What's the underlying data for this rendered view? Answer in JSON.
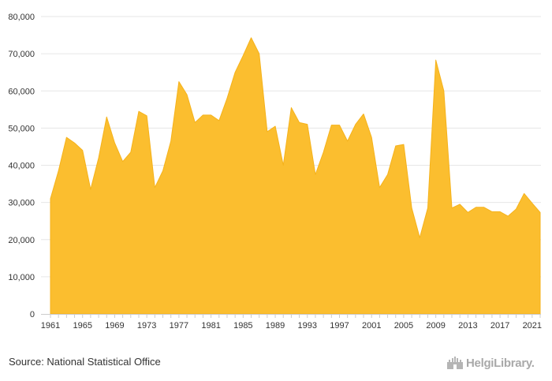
{
  "source": "Source: National Statistical Office",
  "logo": {
    "text": "HelgiLibrary.",
    "icon": "castle-icon"
  },
  "colors": {
    "fill": "#FBBE2F",
    "stroke": "#F5B21B",
    "grid": "#E6E6E6",
    "axis": "#CCCCCC"
  },
  "chart_data": {
    "type": "area",
    "title": "",
    "xlabel": "",
    "ylabel": "",
    "ylim": [
      0,
      80000
    ],
    "yticks": [
      0,
      10000,
      20000,
      30000,
      40000,
      50000,
      60000,
      70000,
      80000
    ],
    "ytick_labels": [
      "0",
      "10,000",
      "20,000",
      "30,000",
      "40,000",
      "50,000",
      "60,000",
      "70,000",
      "80,000"
    ],
    "xtick_labels": [
      "1961",
      "1965",
      "1969",
      "1973",
      "1977",
      "1981",
      "1985",
      "1989",
      "1993",
      "1997",
      "2001",
      "2005",
      "2009",
      "2013",
      "2017",
      "2021"
    ],
    "grid": true,
    "legend": "none",
    "x": [
      1961,
      1962,
      1963,
      1964,
      1965,
      1966,
      1967,
      1968,
      1969,
      1970,
      1971,
      1972,
      1973,
      1974,
      1975,
      1976,
      1977,
      1978,
      1979,
      1980,
      1981,
      1982,
      1983,
      1984,
      1985,
      1986,
      1987,
      1988,
      1989,
      1990,
      1991,
      1992,
      1993,
      1994,
      1995,
      1996,
      1997,
      1998,
      1999,
      2000,
      2001,
      2002,
      2003,
      2004,
      2005,
      2006,
      2007,
      2008,
      2009,
      2010,
      2011,
      2012,
      2013,
      2014,
      2015,
      2016,
      2017,
      2018,
      2019,
      2020,
      2021,
      2022
    ],
    "values": [
      31000,
      38500,
      47500,
      46000,
      44000,
      33500,
      42000,
      53000,
      46000,
      41000,
      43500,
      54500,
      53300,
      34000,
      38500,
      46500,
      62500,
      59000,
      51500,
      53500,
      53500,
      52000,
      58000,
      65000,
      69500,
      74300,
      70000,
      49000,
      50500,
      40000,
      55500,
      51500,
      51000,
      37500,
      43500,
      50800,
      50800,
      46500,
      51000,
      53800,
      47500,
      34000,
      37500,
      45200,
      45600,
      28500,
      20500,
      28500,
      68300,
      60000,
      28500,
      29500,
      27300,
      28700,
      28700,
      27500,
      27500,
      26300,
      28200,
      32400,
      29800,
      27300
    ]
  }
}
